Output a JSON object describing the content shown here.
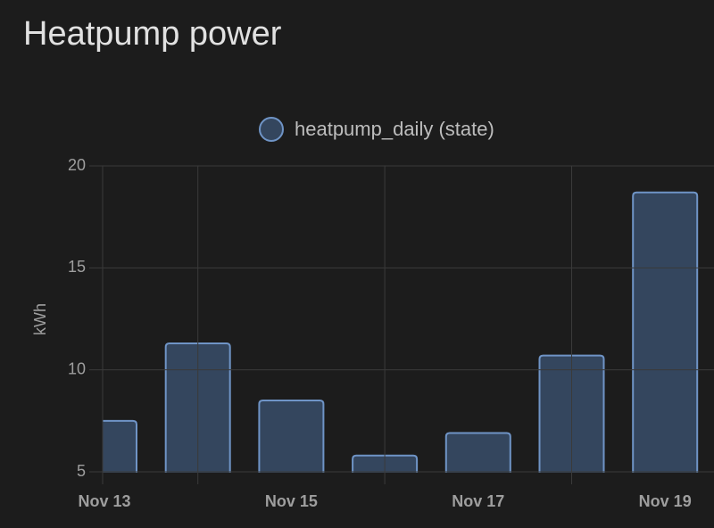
{
  "header": {
    "title": "Heatpump power"
  },
  "chart_data": {
    "type": "bar",
    "legend": "heatpump_daily (state)",
    "y_label": "kWh",
    "categories": [
      "Nov 13",
      null,
      "Nov 15",
      null,
      "Nov 17",
      null,
      "Nov 19"
    ],
    "series": [
      {
        "name": "heatpump_daily (state)",
        "color": "#6f94c6",
        "values": [
          7.5,
          11.3,
          8.5,
          5.8,
          6.9,
          10.7,
          18.7
        ]
      }
    ],
    "ylim": [
      5,
      20
    ],
    "yticks": [
      5,
      10,
      15,
      20
    ],
    "grid": true
  }
}
